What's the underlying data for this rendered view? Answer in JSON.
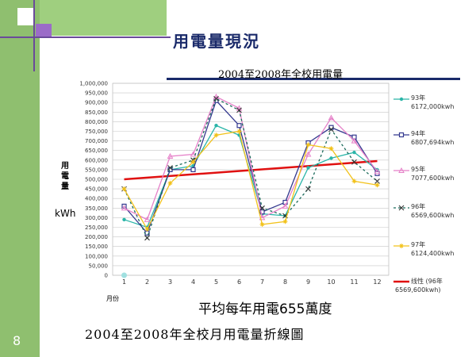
{
  "slide": {
    "title": "用電量現況",
    "number": "8",
    "caption": "2004至2008年全校月用電量折線圖",
    "avg_note": "平均每年用電655萬度"
  },
  "colors": {
    "background_bar": "#8fbf6f",
    "title_color": "#1a2a6a"
  },
  "chart_data": {
    "type": "line",
    "title": "2004至2008年全校用電量",
    "ylabel": "用電量",
    "yunit": "kWh",
    "xlabel": "月份",
    "x": [
      1,
      2,
      3,
      4,
      5,
      6,
      7,
      8,
      9,
      10,
      11,
      12
    ],
    "ylim": [
      0,
      1000000
    ],
    "yticks": [
      0,
      50000,
      100000,
      150000,
      200000,
      250000,
      300000,
      350000,
      400000,
      450000,
      500000,
      550000,
      600000,
      650000,
      700000,
      750000,
      800000,
      850000,
      900000,
      950000,
      1000000
    ],
    "ytick_labels": [
      "0",
      "50,000",
      "100,000",
      "150,000",
      "200,000",
      "250,000",
      "300,000",
      "350,000",
      "400,000",
      "450,000",
      "500,000",
      "550,000",
      "600,000",
      "650,000",
      "700,000",
      "750,000",
      "800,000",
      "850,000",
      "900,000",
      "950,000",
      "1,000,000"
    ],
    "grid": true,
    "legend_position": "right",
    "series": [
      {
        "name": "93年",
        "total": "6172,000kwh",
        "color": "#2ab5a8",
        "marker": "circle",
        "dash": "",
        "values": [
          290000,
          250000,
          550000,
          570000,
          780000,
          730000,
          320000,
          310000,
          560000,
          610000,
          640000,
          550000
        ]
      },
      {
        "name": "94年",
        "total": "6807,694kwh",
        "color": "#34398f",
        "marker": "square",
        "dash": "",
        "values": [
          360000,
          220000,
          550000,
          550000,
          910000,
          780000,
          330000,
          380000,
          690000,
          770000,
          720000,
          530000
        ]
      },
      {
        "name": "95年",
        "total": "7077,600kwh",
        "color": "#e580c8",
        "marker": "triangle",
        "dash": "",
        "values": [
          350000,
          290000,
          620000,
          630000,
          930000,
          870000,
          300000,
          360000,
          630000,
          820000,
          700000,
          540000
        ]
      },
      {
        "name": "96年",
        "total": "6569,600kwh",
        "color": "#1a6a5a",
        "marker": "x",
        "dash": "3,3",
        "values": [
          450000,
          195000,
          560000,
          600000,
          920000,
          860000,
          350000,
          310000,
          450000,
          760000,
          590000,
          490000
        ]
      },
      {
        "name": "97年",
        "total": "6124,400kwh",
        "color": "#f2c21b",
        "marker": "star",
        "dash": "",
        "values": [
          450000,
          240000,
          480000,
          590000,
          730000,
          750000,
          265000,
          280000,
          680000,
          660000,
          490000,
          470000
        ]
      }
    ],
    "trendline": {
      "name": "线性 (96年",
      "total": "6569,600kwh)",
      "color": "#e01010",
      "start": 500000,
      "end": 595000
    },
    "stray_marker": {
      "x": 1,
      "y": 0,
      "color": "#a0e0e0"
    }
  }
}
